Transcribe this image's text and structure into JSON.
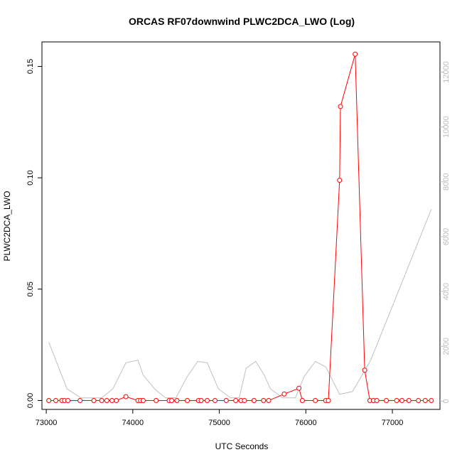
{
  "chart_data": {
    "type": "line",
    "title": "ORCAS RF07downwind PLWC2DCA_LWO (Log)",
    "xlabel": "UTC Seconds",
    "ylabel": "PLWC2DCA_LWO",
    "xlim": [
      72950,
      77550
    ],
    "ylim": [
      -0.004,
      0.161
    ],
    "ylim_right": [
      -300,
      13100
    ],
    "x_ticks": [
      73000,
      74000,
      75000,
      76000,
      77000
    ],
    "x_tick_labels": [
      "73000",
      "74000",
      "75000",
      "76000",
      "77000"
    ],
    "y_ticks": [
      0.0,
      0.05,
      0.1,
      0.15
    ],
    "y_tick_labels": [
      "0.00",
      "0.05",
      "0.10",
      "0.15"
    ],
    "y_ticks_right": [
      0,
      2000,
      4000,
      6000,
      8000,
      10000,
      12000
    ],
    "y_tick_labels_right": [
      "0",
      "2000",
      "4000",
      "6000",
      "8000",
      "10000",
      "12000"
    ],
    "grid": false,
    "series": [
      {
        "color": "#ff0000",
        "axis": "left",
        "style": "line+points",
        "x": [
          73030,
          73110,
          73180,
          73210,
          73250,
          73390,
          73550,
          73640,
          73700,
          73760,
          73810,
          73920,
          74060,
          74090,
          74120,
          74270,
          74420,
          74450,
          74510,
          74630,
          74760,
          74790,
          74860,
          74950,
          75080,
          75190,
          75250,
          75290,
          75400,
          75510,
          75570,
          75750,
          75920,
          75960,
          76110,
          76230,
          76260,
          76390,
          76400,
          76570,
          76680,
          76740,
          76780,
          76820,
          76930,
          77050,
          77110,
          77190,
          77300,
          77380,
          77450
        ],
        "y": [
          0.0,
          0.0,
          0.0,
          0.0,
          0.0,
          0.0,
          0.0,
          0.0,
          0.0,
          0.0,
          0.0,
          0.0017,
          0.0,
          0.0,
          0.0,
          0.0,
          0.0,
          0.0,
          0.0,
          0.0,
          0.0,
          0.0,
          0.0,
          0.0,
          0.0,
          0.0,
          0.0,
          0.0,
          0.0,
          0.0,
          0.0,
          0.0029,
          0.0055,
          0.0,
          0.0,
          0.0,
          0.0,
          0.0989,
          0.132,
          0.1555,
          0.0136,
          0.0,
          0.0,
          0.0,
          0.0,
          0.0,
          0.0,
          0.0,
          0.0,
          0.0,
          0.0
        ]
      },
      {
        "color": "#c0c0c0",
        "axis": "right",
        "style": "line",
        "x": [
          73030,
          73240,
          73400,
          73520,
          73640,
          73770,
          73920,
          74060,
          74120,
          74260,
          74380,
          74500,
          74630,
          74750,
          74860,
          74990,
          75130,
          75230,
          75310,
          75420,
          75520,
          75590,
          75730,
          75880,
          75980,
          76110,
          76230,
          76390,
          76540,
          76750,
          77450
        ],
        "y": [
          2150,
          450,
          120,
          120,
          120,
          450,
          1400,
          1500,
          950,
          420,
          120,
          130,
          900,
          1450,
          1400,
          450,
          120,
          130,
          1200,
          1450,
          950,
          450,
          120,
          120,
          900,
          1450,
          1250,
          250,
          350,
          1500,
          7000
        ]
      }
    ]
  }
}
